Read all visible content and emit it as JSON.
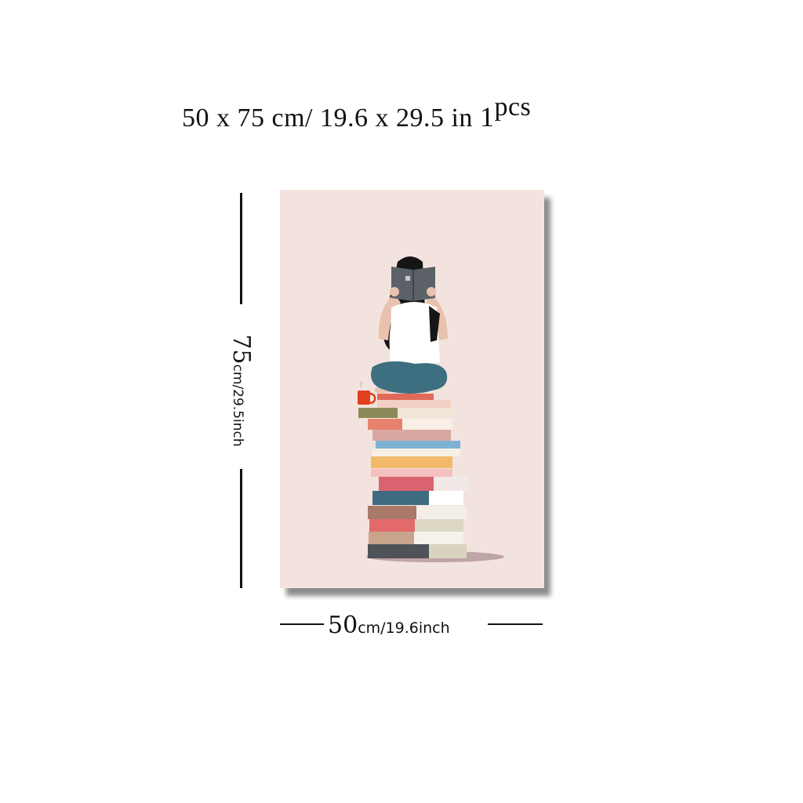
{
  "headline": {
    "size_cm": "50 x 75 cm/",
    "size_in": "19.6 x 29.5 in",
    "qty_num": "1",
    "qty_unit": "pcs"
  },
  "height_label": {
    "number": "75",
    "unit": "cm/29.5inch"
  },
  "width_label": {
    "number": "50",
    "unit": "cm/19.6inch"
  },
  "artwork": {
    "subject": "woman reading on stack of books",
    "background_color": "#f3e3de"
  }
}
